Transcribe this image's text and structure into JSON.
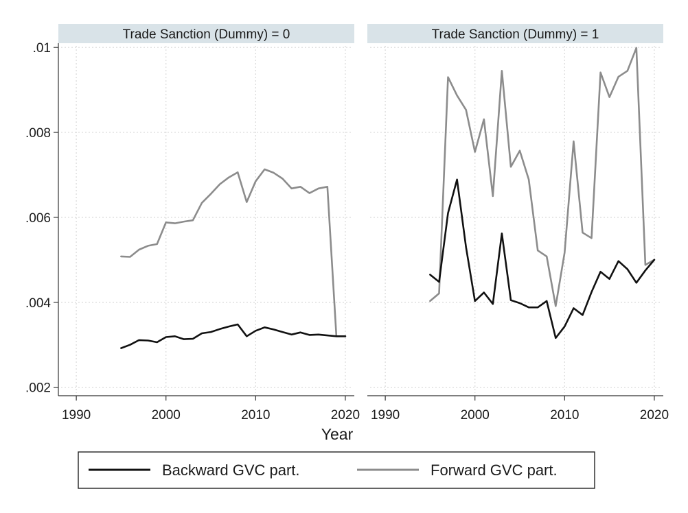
{
  "chart_data": {
    "type": "line",
    "xlabel": "Year",
    "ylabel": "",
    "xlim": [
      1988,
      2021
    ],
    "ylim": [
      0.0018,
      0.0101
    ],
    "x_ticks": [
      1990,
      2000,
      2010,
      2020
    ],
    "x_tick_labels": [
      "1990",
      "2000",
      "2010",
      "2020"
    ],
    "y_ticks": [
      0.002,
      0.004,
      0.006,
      0.008,
      0.01
    ],
    "y_tick_labels": [
      ".002",
      ".004",
      ".006",
      ".008",
      ".01"
    ],
    "grid": true,
    "legend_position": "bottom",
    "colors": {
      "backward": "#111111",
      "forward": "#8c8c8c",
      "strip": "#d9e3e8"
    },
    "legend": [
      {
        "label": "Backward GVC part.",
        "color": "#111111"
      },
      {
        "label": "Forward GVC part.",
        "color": "#8c8c8c"
      }
    ],
    "panels": [
      {
        "title": "Trade Sanction (Dummy) = 0",
        "series": [
          {
            "name": "Backward GVC part.",
            "color": "#111111",
            "x": [
              1995,
              1996,
              1997,
              1998,
              1999,
              2000,
              2001,
              2002,
              2003,
              2004,
              2005,
              2006,
              2007,
              2008,
              2009,
              2010,
              2011,
              2012,
              2013,
              2014,
              2015,
              2016,
              2017,
              2018,
              2019,
              2020
            ],
            "y": [
              0.00292,
              0.003,
              0.00311,
              0.0031,
              0.00306,
              0.00318,
              0.0032,
              0.00313,
              0.00314,
              0.00327,
              0.0033,
              0.00337,
              0.00343,
              0.00348,
              0.0032,
              0.00333,
              0.00341,
              0.00336,
              0.0033,
              0.00324,
              0.00329,
              0.00323,
              0.00324,
              0.00322,
              0.0032,
              0.0032
            ]
          },
          {
            "name": "Forward GVC part.",
            "color": "#8c8c8c",
            "x": [
              1995,
              1996,
              1997,
              1998,
              1999,
              2000,
              2001,
              2002,
              2003,
              2004,
              2005,
              2006,
              2007,
              2008,
              2009,
              2010,
              2011,
              2012,
              2013,
              2014,
              2015,
              2016,
              2017,
              2018,
              2019,
              2020
            ],
            "y": [
              0.00508,
              0.00507,
              0.00524,
              0.00533,
              0.00537,
              0.00588,
              0.00586,
              0.0059,
              0.00593,
              0.00634,
              0.00655,
              0.00678,
              0.00694,
              0.00706,
              0.00636,
              0.00685,
              0.00713,
              0.00705,
              0.00691,
              0.00668,
              0.00672,
              0.00657,
              0.00668,
              0.00672,
              0.0032,
              0.0032
            ]
          }
        ]
      },
      {
        "title": "Trade Sanction (Dummy) = 1",
        "series": [
          {
            "name": "Backward GVC part.",
            "color": "#111111",
            "x": [
              1995,
              1996,
              1997,
              1998,
              1999,
              2000,
              2001,
              2002,
              2003,
              2004,
              2005,
              2006,
              2007,
              2008,
              2009,
              2010,
              2011,
              2012,
              2013,
              2014,
              2015,
              2016,
              2017,
              2018,
              2019,
              2020
            ],
            "y": [
              0.00465,
              0.00448,
              0.0061,
              0.00689,
              0.0053,
              0.00403,
              0.00423,
              0.00396,
              0.00562,
              0.00405,
              0.00398,
              0.00388,
              0.00388,
              0.00403,
              0.00316,
              0.00343,
              0.00386,
              0.0037,
              0.00424,
              0.00472,
              0.00455,
              0.00497,
              0.00478,
              0.00446,
              0.00475,
              0.005
            ]
          },
          {
            "name": "Forward GVC part.",
            "color": "#8c8c8c",
            "x": [
              1995,
              1996,
              1997,
              1998,
              1999,
              2000,
              2001,
              2002,
              2003,
              2004,
              2005,
              2006,
              2007,
              2008,
              2009,
              2010,
              2011,
              2012,
              2013,
              2014,
              2015,
              2016,
              2017,
              2018,
              2019,
              2020
            ],
            "y": [
              0.00403,
              0.00421,
              0.0093,
              0.00887,
              0.00853,
              0.00754,
              0.00831,
              0.0065,
              0.00945,
              0.00719,
              0.00757,
              0.00689,
              0.00522,
              0.00508,
              0.00391,
              0.00517,
              0.00779,
              0.00564,
              0.00551,
              0.00941,
              0.00883,
              0.00931,
              0.00945,
              0.00999,
              0.00488,
              0.005
            ]
          }
        ]
      }
    ]
  }
}
